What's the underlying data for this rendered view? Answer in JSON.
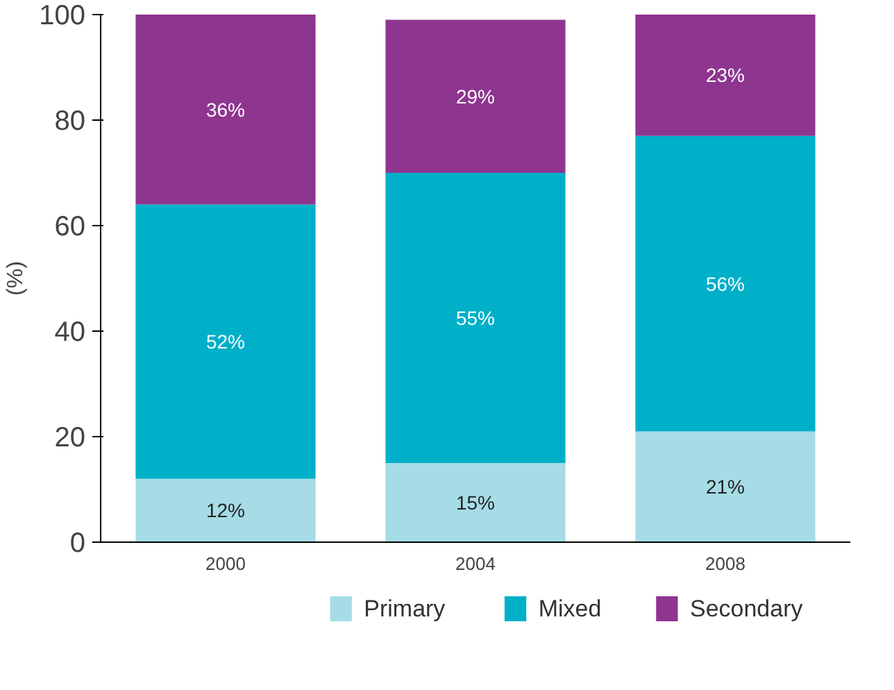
{
  "chart_data": {
    "type": "bar",
    "stacked": true,
    "categories": [
      "2000",
      "2004",
      "2008"
    ],
    "ylabel": "(%)",
    "ylim": [
      0,
      100
    ],
    "yticks": [
      0,
      20,
      40,
      60,
      80,
      100
    ],
    "grid": false,
    "legend": "bottom",
    "series": [
      {
        "name": "Primary",
        "color": "#a6dce6",
        "values": [
          12,
          15,
          21
        ],
        "value_labels": [
          "12%",
          "15%",
          "21%"
        ]
      },
      {
        "name": "Mixed",
        "color": "#00b0c8",
        "values": [
          52,
          55,
          56
        ],
        "value_labels": [
          "52%",
          "55%",
          "56%"
        ]
      },
      {
        "name": "Secondary",
        "color": "#8e3590",
        "values": [
          36,
          29,
          23
        ],
        "value_labels": [
          "36%",
          "29%",
          "23%"
        ]
      }
    ]
  }
}
